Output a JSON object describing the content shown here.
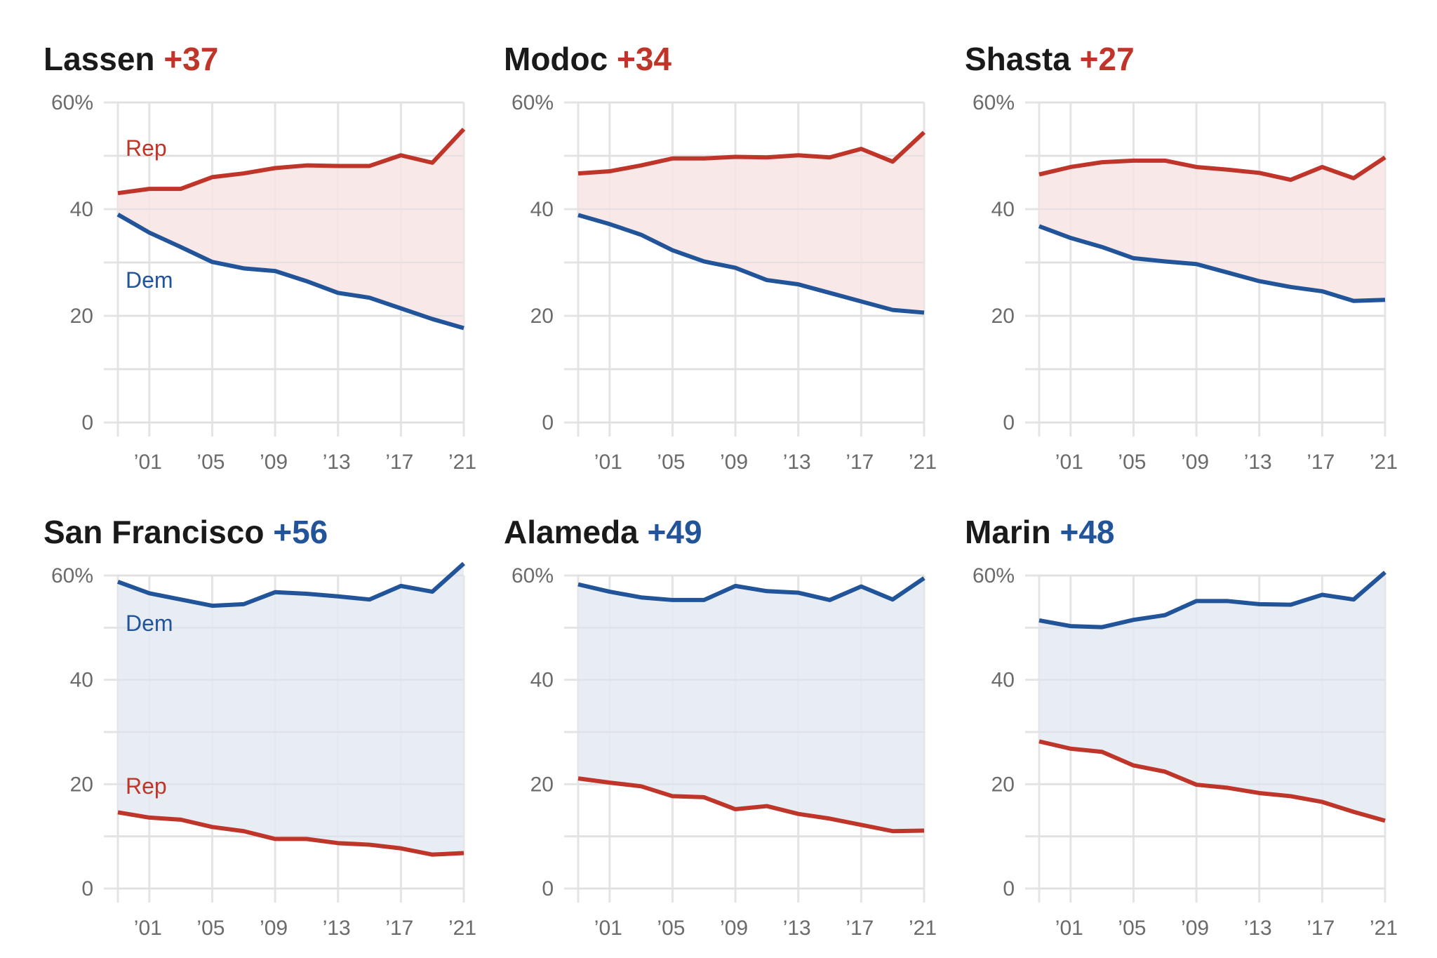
{
  "colors": {
    "rep": "#c0352a",
    "dem": "#22549a",
    "rep_fill": "#f7e4e4",
    "dem_fill": "#e4eaf2",
    "grid": "#e4e4e4",
    "title": "#1a1a1a",
    "tick": "#6b6b6b"
  },
  "chart_data": [
    {
      "type": "area",
      "title": "Lassen",
      "margin": "+37",
      "margin_party": "rep",
      "x": [
        1999,
        2001,
        2003,
        2005,
        2007,
        2009,
        2011,
        2013,
        2015,
        2017,
        2019,
        2021
      ],
      "x_ticks": [
        2001,
        2005,
        2009,
        2013,
        2017,
        2021
      ],
      "x_tick_labels": [
        "’01",
        "’05",
        "’09",
        "’13",
        "’17",
        "’21"
      ],
      "ylim": [
        0,
        60
      ],
      "y_ticks": [
        0,
        20,
        40,
        60
      ],
      "y_tick_labels": [
        "0",
        "20",
        "40",
        "60%"
      ],
      "grid": true,
      "series": [
        {
          "name": "Rep",
          "party": "rep",
          "values": [
            43,
            43.8,
            43.8,
            46,
            46.7,
            47.7,
            48.2,
            48.1,
            48.1,
            50.1,
            48.7,
            55
          ]
        },
        {
          "name": "Dem",
          "party": "dem",
          "values": [
            39,
            35.6,
            32.9,
            30.1,
            28.9,
            28.4,
            26.5,
            24.3,
            23.4,
            21.4,
            19.4,
            17.7
          ]
        }
      ]
    },
    {
      "type": "area",
      "title": "Modoc",
      "margin": "+34",
      "margin_party": "rep",
      "x": [
        1999,
        2001,
        2003,
        2005,
        2007,
        2009,
        2011,
        2013,
        2015,
        2017,
        2019,
        2021
      ],
      "x_ticks": [
        2001,
        2005,
        2009,
        2013,
        2017,
        2021
      ],
      "x_tick_labels": [
        "’01",
        "’05",
        "’09",
        "’13",
        "’17",
        "’21"
      ],
      "ylim": [
        0,
        60
      ],
      "y_ticks": [
        0,
        20,
        40,
        60
      ],
      "y_tick_labels": [
        "0",
        "20",
        "40",
        "60%"
      ],
      "grid": true,
      "series": [
        {
          "party": "rep",
          "values": [
            46.7,
            47.1,
            48.2,
            49.5,
            49.5,
            49.8,
            49.7,
            50.1,
            49.7,
            51.3,
            48.9,
            54.4
          ]
        },
        {
          "party": "dem",
          "values": [
            38.9,
            37.2,
            35.2,
            32.3,
            30.2,
            29,
            26.7,
            25.9,
            24.3,
            22.7,
            21.1,
            20.6
          ]
        }
      ]
    },
    {
      "type": "area",
      "title": "Shasta",
      "margin": "+27",
      "margin_party": "rep",
      "x": [
        1999,
        2001,
        2003,
        2005,
        2007,
        2009,
        2011,
        2013,
        2015,
        2017,
        2019,
        2021
      ],
      "x_ticks": [
        2001,
        2005,
        2009,
        2013,
        2017,
        2021
      ],
      "x_tick_labels": [
        "’01",
        "’05",
        "’09",
        "’13",
        "’17",
        "’21"
      ],
      "ylim": [
        0,
        60
      ],
      "y_ticks": [
        0,
        20,
        40,
        60
      ],
      "y_tick_labels": [
        "0",
        "20",
        "40",
        "60%"
      ],
      "grid": true,
      "series": [
        {
          "party": "rep",
          "values": [
            46.5,
            47.9,
            48.8,
            49.1,
            49.1,
            47.9,
            47.4,
            46.8,
            45.5,
            47.9,
            45.8,
            49.7
          ]
        },
        {
          "party": "dem",
          "values": [
            36.8,
            34.6,
            32.9,
            30.8,
            30.2,
            29.7,
            28.1,
            26.5,
            25.4,
            24.6,
            22.8,
            23
          ]
        }
      ]
    },
    {
      "type": "area",
      "title": "San Francisco",
      "margin": "+56",
      "margin_party": "dem",
      "x": [
        1999,
        2001,
        2003,
        2005,
        2007,
        2009,
        2011,
        2013,
        2015,
        2017,
        2019,
        2021
      ],
      "x_ticks": [
        2001,
        2005,
        2009,
        2013,
        2017,
        2021
      ],
      "x_tick_labels": [
        "’01",
        "’05",
        "’09",
        "’13",
        "’17",
        "’21"
      ],
      "ylim": [
        0,
        60
      ],
      "y_ticks": [
        0,
        20,
        40,
        60
      ],
      "y_tick_labels": [
        "0",
        "20",
        "40",
        "60%"
      ],
      "grid": true,
      "series": [
        {
          "name": "Dem",
          "party": "dem",
          "values": [
            58.8,
            56.6,
            55.4,
            54.2,
            54.5,
            56.8,
            56.5,
            56,
            55.4,
            58,
            56.9,
            62.3
          ]
        },
        {
          "name": "Rep",
          "party": "rep",
          "values": [
            14.6,
            13.6,
            13.2,
            11.8,
            11,
            9.5,
            9.5,
            8.7,
            8.4,
            7.7,
            6.5,
            6.8
          ]
        }
      ]
    },
    {
      "type": "area",
      "title": "Alameda",
      "margin": "+49",
      "margin_party": "dem",
      "x": [
        1999,
        2001,
        2003,
        2005,
        2007,
        2009,
        2011,
        2013,
        2015,
        2017,
        2019,
        2021
      ],
      "x_ticks": [
        2001,
        2005,
        2009,
        2013,
        2017,
        2021
      ],
      "x_tick_labels": [
        "’01",
        "’05",
        "’09",
        "’13",
        "’17",
        "’21"
      ],
      "ylim": [
        0,
        60
      ],
      "y_ticks": [
        0,
        20,
        40,
        60
      ],
      "y_tick_labels": [
        "0",
        "20",
        "40",
        "60%"
      ],
      "grid": true,
      "series": [
        {
          "party": "dem",
          "values": [
            58.3,
            56.9,
            55.8,
            55.3,
            55.3,
            58,
            57,
            56.7,
            55.3,
            57.9,
            55.4,
            59.5
          ]
        },
        {
          "party": "rep",
          "values": [
            21.1,
            20.3,
            19.6,
            17.7,
            17.5,
            15.2,
            15.8,
            14.3,
            13.4,
            12.2,
            11,
            11.1
          ]
        }
      ]
    },
    {
      "type": "area",
      "title": "Marin",
      "margin": "+48",
      "margin_party": "dem",
      "x": [
        1999,
        2001,
        2003,
        2005,
        2007,
        2009,
        2011,
        2013,
        2015,
        2017,
        2019,
        2021
      ],
      "x_ticks": [
        2001,
        2005,
        2009,
        2013,
        2017,
        2021
      ],
      "x_tick_labels": [
        "’01",
        "’05",
        "’09",
        "’13",
        "’17",
        "’21"
      ],
      "ylim": [
        0,
        60
      ],
      "y_ticks": [
        0,
        20,
        40,
        60
      ],
      "y_tick_labels": [
        "0",
        "20",
        "40",
        "60%"
      ],
      "grid": true,
      "series": [
        {
          "party": "dem",
          "values": [
            51.4,
            50.3,
            50.1,
            51.5,
            52.4,
            55.1,
            55.1,
            54.5,
            54.4,
            56.3,
            55.4,
            60.6
          ]
        },
        {
          "party": "rep",
          "values": [
            28.2,
            26.8,
            26.2,
            23.6,
            22.4,
            19.9,
            19.3,
            18.3,
            17.7,
            16.6,
            14.7,
            13
          ]
        }
      ]
    }
  ]
}
